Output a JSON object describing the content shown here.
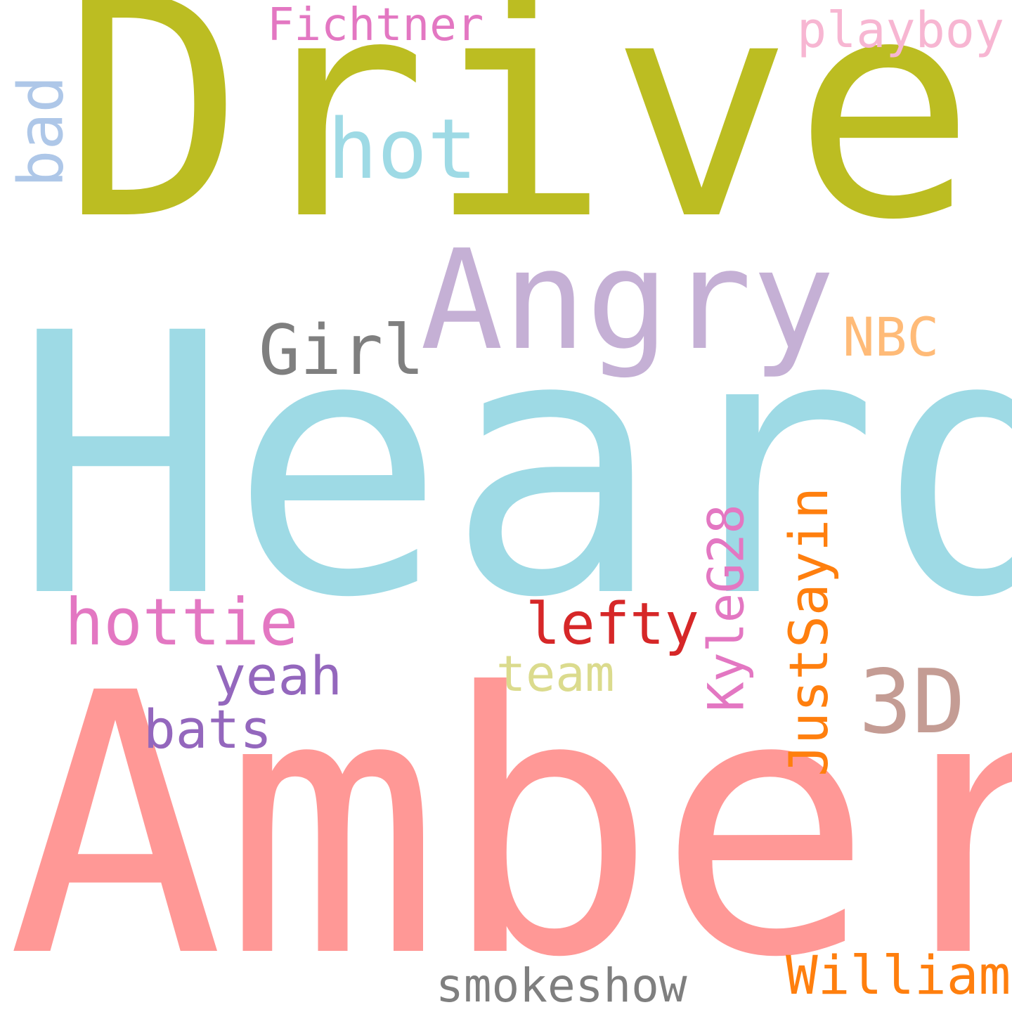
{
  "words": [
    {
      "id": "drive",
      "text": "Drive",
      "color": "#bcbd22"
    },
    {
      "id": "heard",
      "text": "Heard",
      "color": "#9edae5"
    },
    {
      "id": "amber",
      "text": "Amber",
      "color": "#ff9896"
    },
    {
      "id": "angry",
      "text": "Angry",
      "color": "#c5b0d5"
    },
    {
      "id": "hot",
      "text": "hot",
      "color": "#9edae5"
    },
    {
      "id": "girl",
      "text": "Girl",
      "color": "#7f7f7f"
    },
    {
      "id": "nbc",
      "text": "NBC",
      "color": "#ffbb78"
    },
    {
      "id": "fichtner",
      "text": "Fichtner",
      "color": "#e377c2"
    },
    {
      "id": "playboy",
      "text": "playboy",
      "color": "#f7b6d2"
    },
    {
      "id": "bad",
      "text": "bad",
      "color": "#aec7e8"
    },
    {
      "id": "hottie",
      "text": "hottie",
      "color": "#e377c2"
    },
    {
      "id": "yeah",
      "text": "yeah",
      "color": "#9467bd"
    },
    {
      "id": "bats",
      "text": "bats",
      "color": "#9467bd"
    },
    {
      "id": "lefty",
      "text": "lefty",
      "color": "#d62728"
    },
    {
      "id": "team",
      "text": "team",
      "color": "#dbdb8d"
    },
    {
      "id": "kyleg28",
      "text": "KyleG28",
      "color": "#e377c2"
    },
    {
      "id": "justsayin",
      "text": "JustSayin",
      "color": "#ff7f0e"
    },
    {
      "id": "3d",
      "text": "3D",
      "color": "#c49c94"
    },
    {
      "id": "smokeshow",
      "text": "smokeshow",
      "color": "#7f7f7f"
    },
    {
      "id": "william",
      "text": "William",
      "color": "#ff7f0e"
    }
  ]
}
